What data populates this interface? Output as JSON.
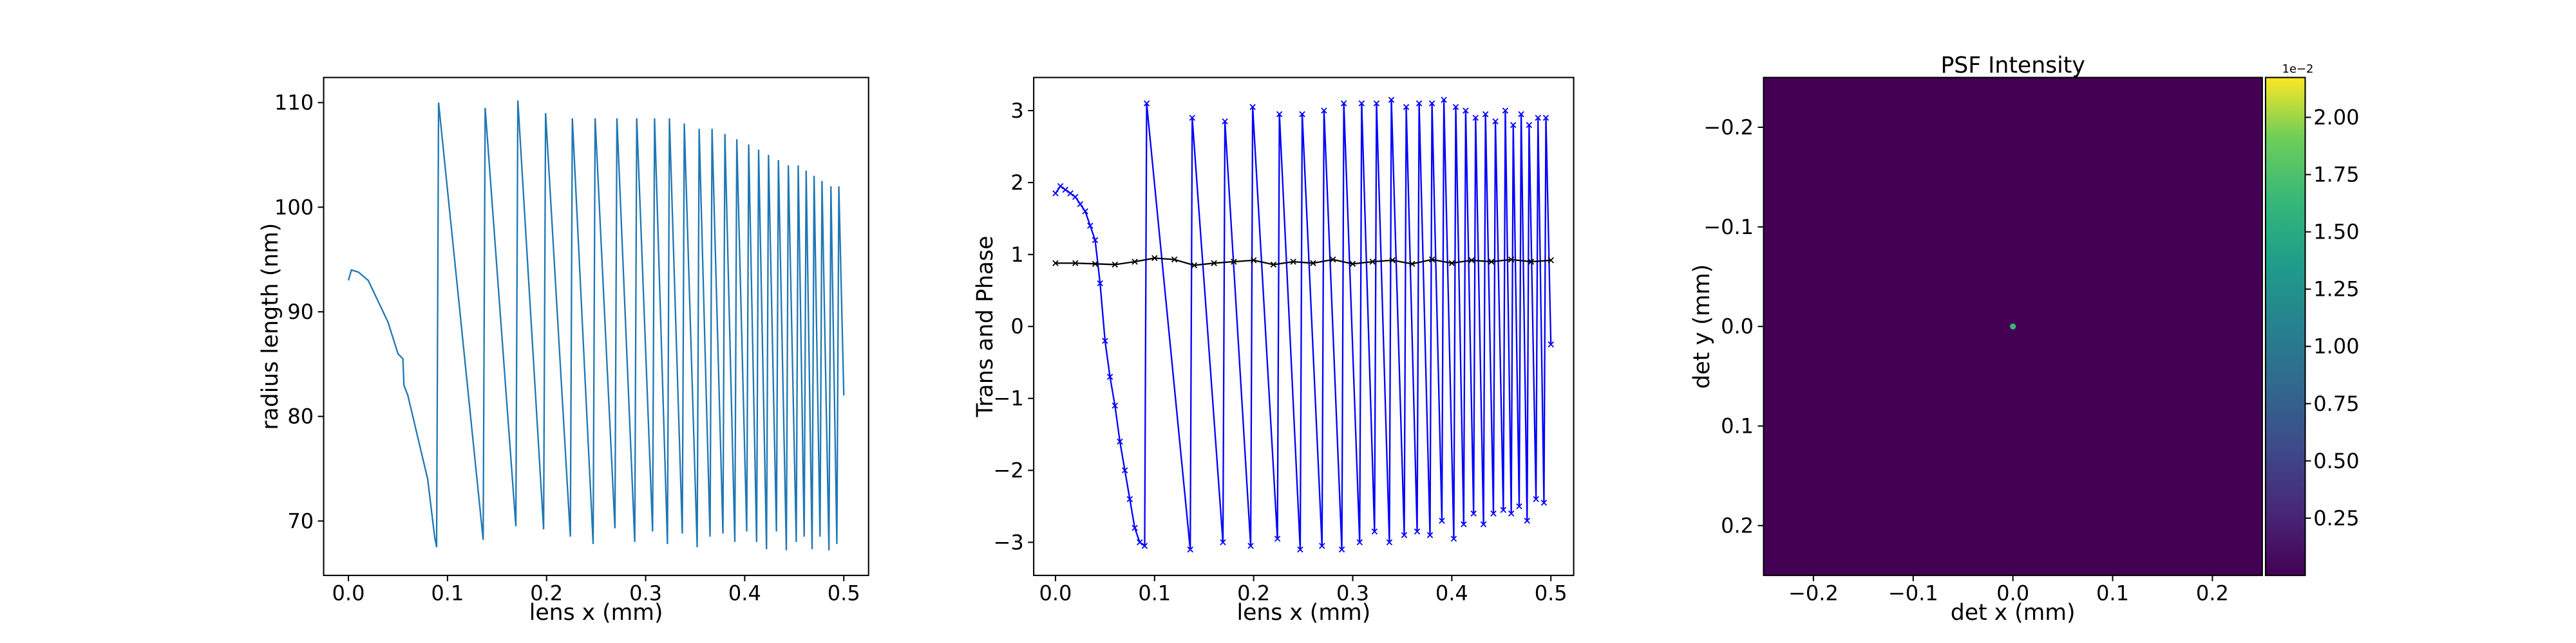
{
  "chart_data": [
    {
      "type": "line",
      "xlabel": "lens x (mm)",
      "ylabel": "radius length (nm)",
      "xlim": [
        -0.025,
        0.525
      ],
      "ylim": [
        64.8,
        112.4
      ],
      "xticks": [
        {
          "value": 0,
          "label": "0.0"
        },
        0.1,
        0.2,
        0.3,
        0.4,
        0.5
      ],
      "yticks": [
        70,
        80,
        90,
        100,
        110
      ],
      "series": [
        {
          "color": "#1f77b4",
          "x": [
            0,
            0.003,
            0.01,
            0.02,
            0.03,
            0.04,
            0.05,
            0.055,
            0.056,
            0.06,
            0.07,
            0.08,
            0.087,
            0.089,
            0.091,
            0.136,
            0.138,
            0.169,
            0.171,
            0.197,
            0.199,
            0.224,
            0.226,
            0.247,
            0.249,
            0.269,
            0.271,
            0.289,
            0.291,
            0.307,
            0.309,
            0.322,
            0.324,
            0.337,
            0.339,
            0.352,
            0.354,
            0.365,
            0.367,
            0.378,
            0.38,
            0.39,
            0.392,
            0.402,
            0.404,
            0.412,
            0.414,
            0.422,
            0.424,
            0.432,
            0.434,
            0.442,
            0.444,
            0.452,
            0.454,
            0.46,
            0.462,
            0.468,
            0.47,
            0.476,
            0.478,
            0.485,
            0.487,
            0.493,
            0.495,
            0.5
          ],
          "values": [
            93,
            94,
            93.8,
            93,
            91,
            89,
            86,
            85.5,
            83,
            82,
            78,
            74,
            68.5,
            67.5,
            110,
            68.2,
            109.5,
            69.5,
            110.2,
            69.2,
            109,
            68.5,
            108.5,
            67.8,
            108.5,
            69.3,
            108.5,
            68,
            108.5,
            69,
            108.5,
            67.8,
            108.5,
            68.8,
            108,
            67.5,
            107.5,
            68.5,
            107.5,
            68.8,
            107,
            68,
            106.5,
            69,
            106,
            68,
            105.5,
            67.3,
            105,
            69,
            104.5,
            67.2,
            104,
            68,
            104,
            68.5,
            103.5,
            67.3,
            103,
            68.5,
            102.5,
            67.2,
            102,
            67.8,
            102,
            82
          ]
        }
      ]
    },
    {
      "type": "line",
      "xlabel": "lens x (mm)",
      "ylabel": "Trans and Phase",
      "xlim": [
        -0.022,
        0.523
      ],
      "ylim": [
        -3.46,
        3.46
      ],
      "xticks": [
        {
          "value": 0,
          "label": "0.0"
        },
        0.1,
        0.2,
        0.3,
        0.4,
        0.5
      ],
      "yticks": [
        {
          "value": -3,
          "label": "−3"
        },
        {
          "value": -2,
          "label": "−2"
        },
        {
          "value": -1,
          "label": "−1"
        },
        0,
        1,
        2,
        3
      ],
      "marker": "x",
      "series": [
        {
          "color": "#0000ff",
          "x": [
            0,
            0.005,
            0.01,
            0.015,
            0.02,
            0.025,
            0.03,
            0.035,
            0.04,
            0.045,
            0.05,
            0.055,
            0.06,
            0.065,
            0.07,
            0.075,
            0.08,
            0.085,
            0.09,
            0.092,
            0.136,
            0.138,
            0.169,
            0.171,
            0.197,
            0.199,
            0.224,
            0.226,
            0.247,
            0.249,
            0.269,
            0.271,
            0.289,
            0.291,
            0.307,
            0.309,
            0.322,
            0.324,
            0.337,
            0.339,
            0.352,
            0.354,
            0.365,
            0.367,
            0.378,
            0.38,
            0.39,
            0.392,
            0.402,
            0.404,
            0.412,
            0.414,
            0.422,
            0.424,
            0.432,
            0.434,
            0.442,
            0.444,
            0.452,
            0.454,
            0.46,
            0.462,
            0.468,
            0.47,
            0.476,
            0.478,
            0.485,
            0.487,
            0.493,
            0.495,
            0.5
          ],
          "values": [
            1.85,
            1.95,
            1.9,
            1.85,
            1.8,
            1.7,
            1.6,
            1.4,
            1.2,
            0.6,
            -0.2,
            -0.7,
            -1.1,
            -1.6,
            -2.0,
            -2.4,
            -2.8,
            -3.0,
            -3.05,
            3.1,
            -3.1,
            2.9,
            -3.0,
            2.85,
            -3.05,
            3.05,
            -2.95,
            2.95,
            -3.1,
            2.95,
            -3.05,
            3.0,
            -3.1,
            3.1,
            -3.0,
            3.1,
            -2.85,
            3.1,
            -3.0,
            3.15,
            -2.9,
            3.05,
            -2.85,
            3.1,
            -2.9,
            3.1,
            -2.7,
            3.15,
            -2.95,
            3.05,
            -2.75,
            3.0,
            -2.6,
            2.9,
            -2.75,
            2.95,
            -2.6,
            2.85,
            -2.55,
            3.0,
            -2.6,
            2.8,
            -2.5,
            2.95,
            -2.7,
            2.8,
            -2.4,
            2.9,
            -2.45,
            2.9,
            -0.25
          ]
        },
        {
          "color": "#000000",
          "x": [
            0,
            0.02,
            0.04,
            0.06,
            0.08,
            0.1,
            0.12,
            0.14,
            0.16,
            0.18,
            0.2,
            0.22,
            0.24,
            0.26,
            0.28,
            0.3,
            0.32,
            0.34,
            0.36,
            0.38,
            0.4,
            0.42,
            0.44,
            0.46,
            0.48,
            0.5
          ],
          "values": [
            0.88,
            0.88,
            0.87,
            0.86,
            0.9,
            0.95,
            0.93,
            0.85,
            0.88,
            0.9,
            0.92,
            0.86,
            0.9,
            0.88,
            0.93,
            0.87,
            0.9,
            0.92,
            0.87,
            0.93,
            0.88,
            0.92,
            0.9,
            0.93,
            0.9,
            0.92
          ]
        }
      ]
    },
    {
      "type": "heatmap",
      "title": "PSF Intensity",
      "xlabel": "det x (mm)",
      "ylabel": "det y (mm)",
      "xlim": [
        -0.25,
        0.25
      ],
      "ylim": [
        0.25,
        -0.25
      ],
      "xticks": [
        {
          "value": -0.2,
          "label": "−0.2"
        },
        {
          "value": -0.1,
          "label": "−0.1"
        },
        {
          "value": 0,
          "label": "0.0"
        },
        0.1,
        0.2
      ],
      "yticks": [
        {
          "value": -0.2,
          "label": "−0.2"
        },
        {
          "value": -0.1,
          "label": "−0.1"
        },
        {
          "value": 0,
          "label": "0.0"
        },
        0.1,
        0.2
      ],
      "background_color": "#440154",
      "spot": {
        "x": 0,
        "y": 0,
        "value": 2.17,
        "color": "#35b779"
      },
      "colorbar": {
        "lim": [
          0.0,
          2.174
        ],
        "offset_label": "1e−2",
        "ticks": [
          0.25,
          {
            "value": 0.5,
            "label": "0.50"
          },
          0.75,
          {
            "value": 1,
            "label": "1.00"
          },
          1.25,
          {
            "value": 1.5,
            "label": "1.50"
          },
          1.75,
          {
            "value": 2,
            "label": "2.00"
          }
        ]
      }
    }
  ]
}
